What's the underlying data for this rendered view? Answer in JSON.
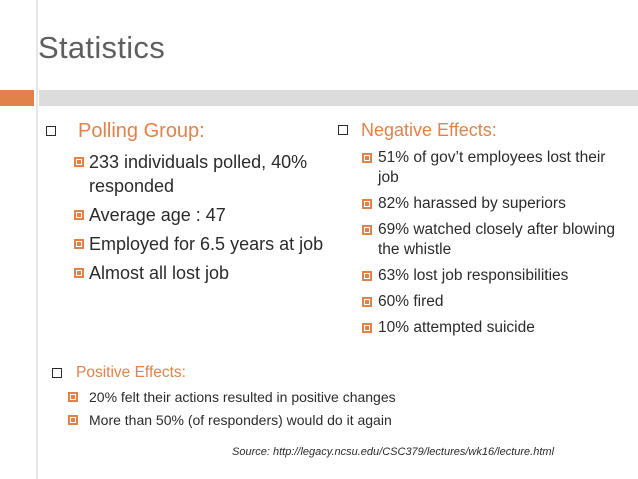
{
  "title": "Statistics",
  "left": {
    "heading": "Polling Group:",
    "items": [
      "233 individuals polled, 40% responded",
      "Average age : 47",
      "Employed for 6.5 years at job",
      "Almost all lost job"
    ]
  },
  "right": {
    "heading": "Negative Effects:",
    "items": [
      "51% of gov’t employees lost their job",
      "82% harassed by superiors",
      "69% watched closely after blowing the whistle",
      "63% lost job responsibilities",
      "60% fired",
      "10% attempted suicide"
    ]
  },
  "bottom": {
    "heading": "Positive Effects:",
    "items": [
      "20% felt their actions resulted in positive changes",
      "More than 50% (of responders) would do it again"
    ]
  },
  "source": "Source: http://legacy.ncsu.edu/CSC379/lectures/wk16/lecture.html",
  "colors": {
    "accent": "#e0824a",
    "title": "#5f5f5f",
    "text": "#2b2b2b",
    "bar_gray": "#dcdcdc"
  }
}
